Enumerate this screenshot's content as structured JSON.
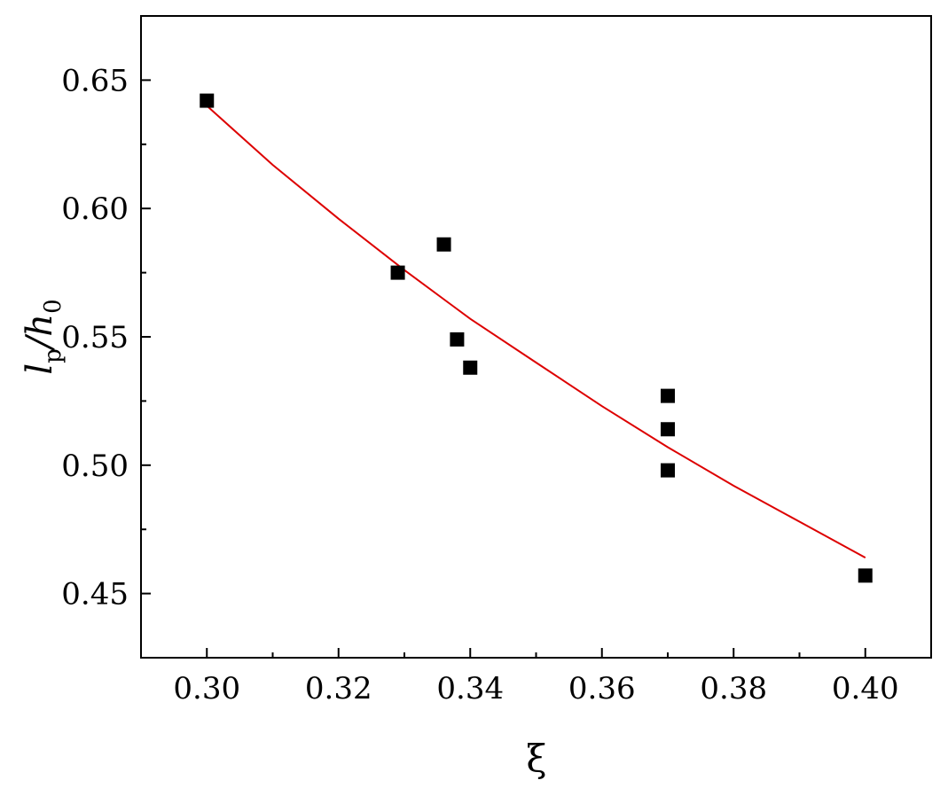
{
  "chart_data": {
    "type": "scatter",
    "title": "",
    "xlabel": "ξ",
    "ylabel": {
      "base": "l",
      "sub": "p",
      "mid": "/h",
      "sub2": "0"
    },
    "xlim": [
      0.29,
      0.41
    ],
    "ylim": [
      0.425,
      0.675
    ],
    "x_ticks": [
      0.3,
      0.32,
      0.34,
      0.36,
      0.38,
      0.4
    ],
    "x_tick_labels": [
      "0.30",
      "0.32",
      "0.34",
      "0.36",
      "0.38",
      "0.40"
    ],
    "y_ticks": [
      0.45,
      0.5,
      0.55,
      0.6,
      0.65
    ],
    "y_tick_labels": [
      "0.45",
      "0.50",
      "0.55",
      "0.60",
      "0.65"
    ],
    "grid": false,
    "series": [
      {
        "kind": "scatter",
        "marker": "square",
        "color": "#000000",
        "x": [
          0.3,
          0.329,
          0.336,
          0.338,
          0.34,
          0.37,
          0.37,
          0.37,
          0.4
        ],
        "y": [
          0.642,
          0.575,
          0.586,
          0.549,
          0.538,
          0.527,
          0.514,
          0.498,
          0.457
        ]
      },
      {
        "kind": "line",
        "color": "#dd0000",
        "x": [
          0.3,
          0.31,
          0.32,
          0.33,
          0.34,
          0.35,
          0.36,
          0.37,
          0.38,
          0.39,
          0.4
        ],
        "y": [
          0.64,
          0.617,
          0.596,
          0.576,
          0.557,
          0.54,
          0.523,
          0.507,
          0.492,
          0.478,
          0.464
        ]
      }
    ]
  }
}
